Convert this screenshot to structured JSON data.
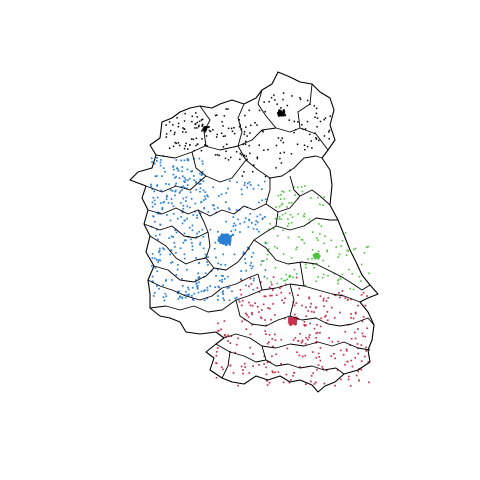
{
  "map": {
    "background": "#ffffff",
    "border_color": "#000000",
    "clusters": [
      {
        "name": "black",
        "color": "#000000",
        "density": "medium"
      },
      {
        "name": "blue",
        "color": "#2a7fd4",
        "density": "high"
      },
      {
        "name": "green",
        "color": "#4cc23a",
        "density": "medium"
      },
      {
        "name": "red",
        "color": "#c8324f",
        "density": "high"
      }
    ]
  }
}
